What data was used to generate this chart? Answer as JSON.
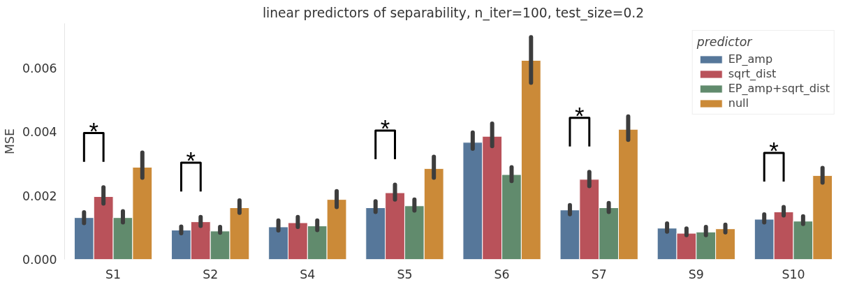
{
  "chart_data": {
    "type": "bar",
    "title": "linear predictors of separability, n_iter=100, test_size=0.2",
    "ylabel": "MSE",
    "legend_title": "predictor",
    "categories": [
      "S1",
      "S2",
      "S4",
      "S5",
      "S6",
      "S7",
      "S9",
      "S10"
    ],
    "series": [
      {
        "name": "EP_amp",
        "color": "#56779a",
        "values": [
          0.00131,
          0.00092,
          0.00102,
          0.00162,
          0.00367,
          0.00155,
          0.00098,
          0.00126
        ],
        "errors": [
          [
            0.00114,
            0.00148
          ],
          [
            0.00082,
            0.00103
          ],
          [
            0.00091,
            0.00122
          ],
          [
            0.00149,
            0.00182
          ],
          [
            0.00347,
            0.00398
          ],
          [
            0.00142,
            0.0017
          ],
          [
            0.00087,
            0.00113
          ],
          [
            0.00116,
            0.00141
          ]
        ]
      },
      {
        "name": "sqrt_dist",
        "color": "#b9525a",
        "values": [
          0.00197,
          0.00118,
          0.00115,
          0.00209,
          0.00386,
          0.00251,
          0.00082,
          0.00149
        ],
        "errors": [
          [
            0.00175,
            0.00226
          ],
          [
            0.00105,
            0.00133
          ],
          [
            0.00102,
            0.00133
          ],
          [
            0.00188,
            0.00234
          ],
          [
            0.00355,
            0.00426
          ],
          [
            0.0023,
            0.00274
          ],
          [
            0.00076,
            0.00097
          ],
          [
            0.00138,
            0.00164
          ]
        ]
      },
      {
        "name": "EP_amp+sqrt_dist",
        "color": "#618b6d",
        "values": [
          0.00131,
          0.00089,
          0.00105,
          0.00168,
          0.00266,
          0.00162,
          0.00086,
          0.0012
        ],
        "errors": [
          [
            0.00116,
            0.00151
          ],
          [
            0.00084,
            0.00102
          ],
          [
            0.00092,
            0.00122
          ],
          [
            0.00153,
            0.00188
          ],
          [
            0.00246,
            0.00289
          ],
          [
            0.00149,
            0.00177
          ],
          [
            0.00076,
            0.00102
          ],
          [
            0.00111,
            0.00135
          ]
        ]
      },
      {
        "name": "null",
        "color": "#cb8a38",
        "values": [
          0.00289,
          0.00162,
          0.00188,
          0.00285,
          0.00624,
          0.00408,
          0.00096,
          0.00263
        ],
        "errors": [
          [
            0.00256,
            0.00335
          ],
          [
            0.00146,
            0.00185
          ],
          [
            0.00164,
            0.00214
          ],
          [
            0.00256,
            0.00322
          ],
          [
            0.00554,
            0.00697
          ],
          [
            0.00375,
            0.00448
          ],
          [
            0.00085,
            0.00109
          ],
          [
            0.00241,
            0.00287
          ]
        ]
      }
    ],
    "annotations": [
      {
        "text": "*",
        "x": "S1",
        "y": 0.00197
      },
      {
        "text": "*",
        "x": "S2",
        "y": 0.00118
      },
      {
        "text": "*",
        "x": "S5",
        "y": 0.00209
      },
      {
        "text": "*",
        "x": "S7",
        "y": 0.00251
      },
      {
        "text": "*",
        "x": "S10",
        "y": 0.00149
      }
    ],
    "ylim": [
      0,
      0.0074
    ],
    "yticks": [
      {
        "value": 0,
        "label": "0.000"
      },
      {
        "value": 0.002,
        "label": "0.002"
      },
      {
        "value": 0.004,
        "label": "0.004"
      },
      {
        "value": 0.006,
        "label": "0.006"
      }
    ],
    "grid": false,
    "legend": "top right"
  }
}
